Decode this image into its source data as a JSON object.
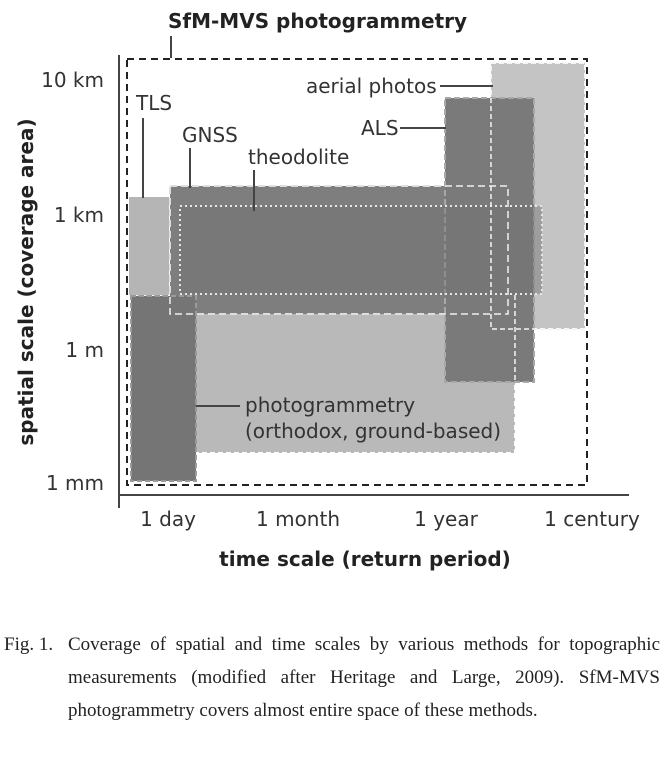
{
  "title": "SfM-MVS photogrammetry",
  "axes": {
    "y_label": "spatial scale (coverage area)",
    "x_label": "time scale (return period)",
    "y_ticks": [
      "10 km",
      "1 km",
      "1 m",
      "1 mm"
    ],
    "x_ticks": [
      "1 day",
      "1 month",
      "1 year",
      "1 century"
    ]
  },
  "methods": {
    "tls": "TLS",
    "gnss": "GNSS",
    "theodolite": "theodolite",
    "aerial": "aerial photos",
    "als": "ALS",
    "photo_line1": "photogrammetry",
    "photo_line2": "(orthodox, ground-based)"
  },
  "colors": {
    "light": "#b9b9b9",
    "mid": "#a4a4a4",
    "dark": "#7b7b7b",
    "darker": "#6f6f6f"
  },
  "caption": {
    "number": "Fig. 1.",
    "text": "Coverage of spatial and time scales by various methods for topographic measurements (modified after Heritage and Large, 2009). SfM-MVS photogrammetry covers almost entire space of these methods."
  }
}
